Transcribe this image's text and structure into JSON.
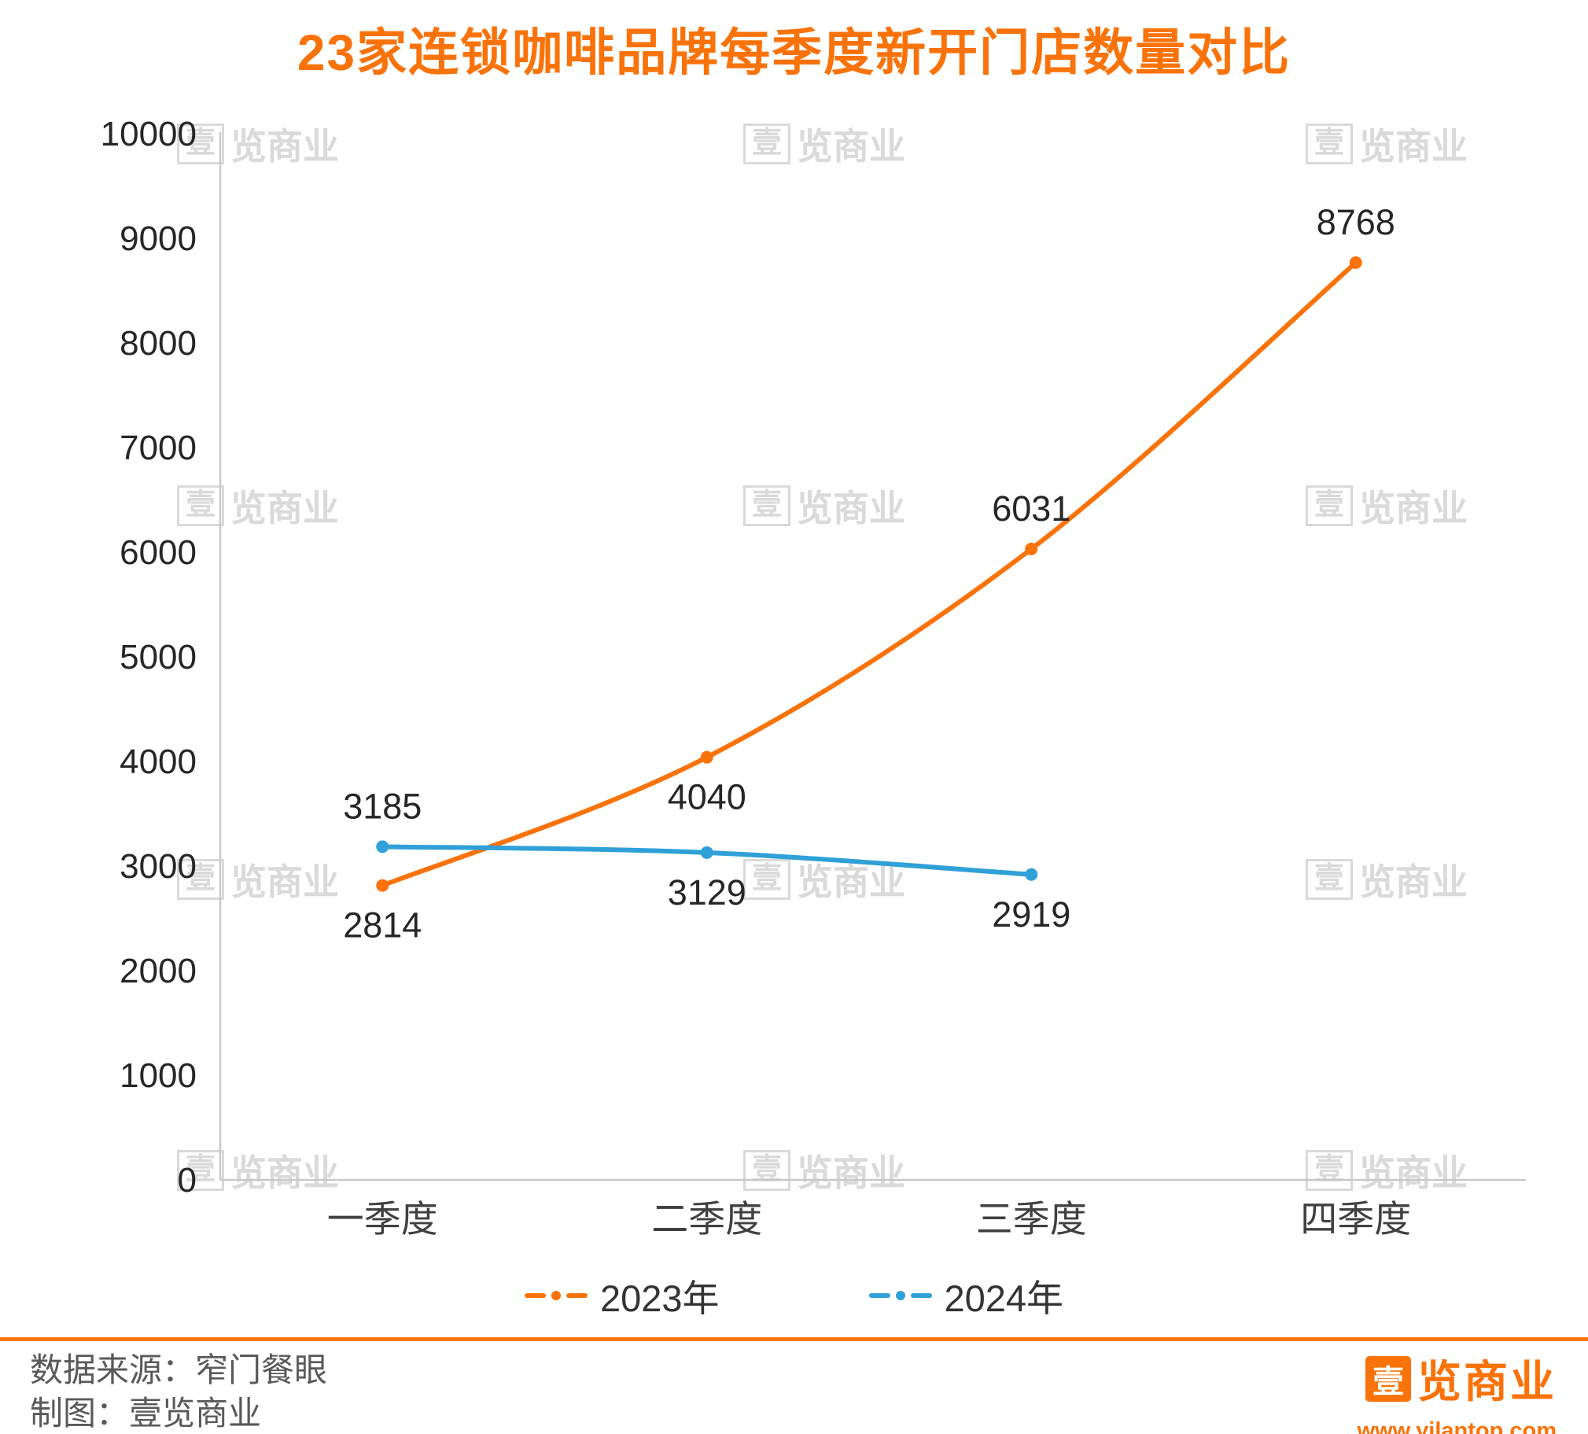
{
  "title": "23家连锁咖啡品牌每季度新开门店数量对比",
  "watermark": {
    "boxed_char": "壹",
    "rest": "览商业"
  },
  "chart_data": {
    "type": "line",
    "title": "23家连锁咖啡品牌每季度新开门店数量对比",
    "categories": [
      "一季度",
      "二季度",
      "三季度",
      "四季度"
    ],
    "series": [
      {
        "name": "2023年",
        "color": "#FA730A",
        "values": [
          2814,
          4040,
          6031,
          8768
        ]
      },
      {
        "name": "2024年",
        "color": "#2FA0D8",
        "values": [
          3185,
          3129,
          2919,
          null
        ]
      }
    ],
    "label_positions": [
      [
        "below",
        "below",
        "above",
        "above"
      ],
      [
        "above",
        "below",
        "below",
        "below"
      ]
    ],
    "ylim": [
      0,
      10000
    ],
    "ytick_step": 1000,
    "grid": false,
    "legend_position": "bottom",
    "line_style": "smooth",
    "marker": "dot"
  },
  "footer": {
    "source_label": "数据来源：窄门餐眼",
    "credit_label": "制图：壹览商业",
    "logo_boxed_char": "壹",
    "logo_text": "览商业",
    "website": "www.yilantop.com"
  },
  "colors": {
    "accent": "#FA730A",
    "series_2023": "#FA730A",
    "series_2024": "#2FA0D8",
    "axis_line": "#C9C9C9",
    "tick_text": "#262626",
    "category_text": "#404040",
    "footer_text": "#595959",
    "watermark": "#DADADA"
  }
}
